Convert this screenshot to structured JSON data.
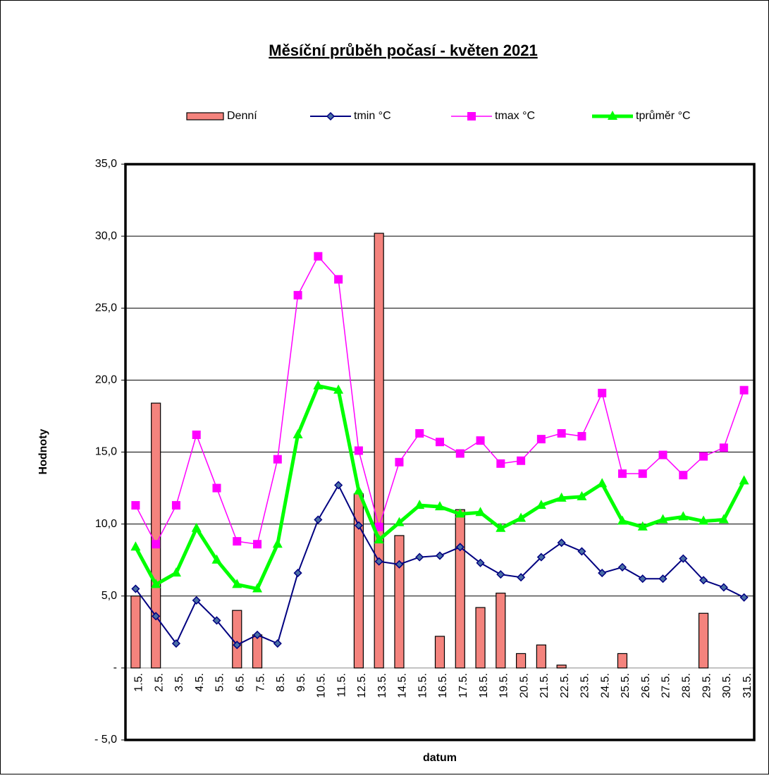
{
  "chart_data": {
    "type": "combo",
    "title": "Měsíční průběh počasí - květen 2021",
    "x_label": "datum",
    "y_label": "Hodnoty",
    "categories": [
      "1.5.",
      "2.5.",
      "3.5.",
      "4.5.",
      "5.5.",
      "6.5.",
      "7.5.",
      "8.5.",
      "9.5.",
      "10.5.",
      "11.5.",
      "12.5.",
      "13.5.",
      "14.5.",
      "15.5.",
      "16.5.",
      "17.5.",
      "18.5.",
      "19.5.",
      "20.5.",
      "21.5.",
      "22.5.",
      "23.5.",
      "24.5.",
      "25.5.",
      "26.5.",
      "27.5.",
      "28.5.",
      "29.5.",
      "30.5.",
      "31.5."
    ],
    "series": [
      {
        "name": "Denní",
        "type": "bar",
        "color": "#f4837d",
        "values": [
          5.0,
          18.4,
          0,
          0,
          0,
          4.0,
          2.3,
          0,
          0,
          0,
          0,
          12.1,
          30.2,
          9.2,
          0,
          2.2,
          11.0,
          4.2,
          5.2,
          1.0,
          1.6,
          0.2,
          0,
          0,
          1.0,
          0,
          0,
          0,
          3.8,
          0,
          0
        ]
      },
      {
        "name": "tmin °C",
        "type": "line",
        "marker": "diamond",
        "color": "#000080",
        "values": [
          5.5,
          3.6,
          1.7,
          4.7,
          3.3,
          1.6,
          2.3,
          1.7,
          6.6,
          10.3,
          12.7,
          9.9,
          7.4,
          7.2,
          7.7,
          7.8,
          8.4,
          7.3,
          6.5,
          6.3,
          7.7,
          8.7,
          8.1,
          6.6,
          7.0,
          6.2,
          6.2,
          7.6,
          6.1,
          5.6,
          4.9
        ]
      },
      {
        "name": "tmax °C",
        "type": "line",
        "marker": "square",
        "color": "#ff00ff",
        "values": [
          11.3,
          8.6,
          11.3,
          16.2,
          12.5,
          8.8,
          8.6,
          14.5,
          25.9,
          28.6,
          27.0,
          15.1,
          9.8,
          14.3,
          16.3,
          15.7,
          14.9,
          15.8,
          14.2,
          14.4,
          15.9,
          16.3,
          16.1,
          19.1,
          13.5,
          13.5,
          14.8,
          13.4,
          14.7,
          15.3,
          19.3
        ]
      },
      {
        "name": "tprůměr °C",
        "type": "line",
        "marker": "triangle",
        "color": "#00ff00",
        "values": [
          8.4,
          5.8,
          6.6,
          9.7,
          7.5,
          5.8,
          5.5,
          8.6,
          16.2,
          19.6,
          19.3,
          12.3,
          8.9,
          10.1,
          11.3,
          11.2,
          10.7,
          10.8,
          9.7,
          10.4,
          11.3,
          11.8,
          11.9,
          12.8,
          10.2,
          9.8,
          10.3,
          10.5,
          10.2,
          10.3,
          13.0
        ]
      }
    ],
    "ylim": [
      -5,
      35
    ],
    "yticks": [
      {
        "value": -5,
        "label": "- 5,0"
      },
      {
        "value": 0,
        "label": "-"
      },
      {
        "value": 5,
        "label": "5,0"
      },
      {
        "value": 10,
        "label": "10,0"
      },
      {
        "value": 15,
        "label": "15,0"
      },
      {
        "value": 20,
        "label": "20,0"
      },
      {
        "value": 25,
        "label": "25,0"
      },
      {
        "value": 30,
        "label": "30,0"
      },
      {
        "value": 35,
        "label": "35,0"
      }
    ],
    "grid": true,
    "legend": "top"
  }
}
